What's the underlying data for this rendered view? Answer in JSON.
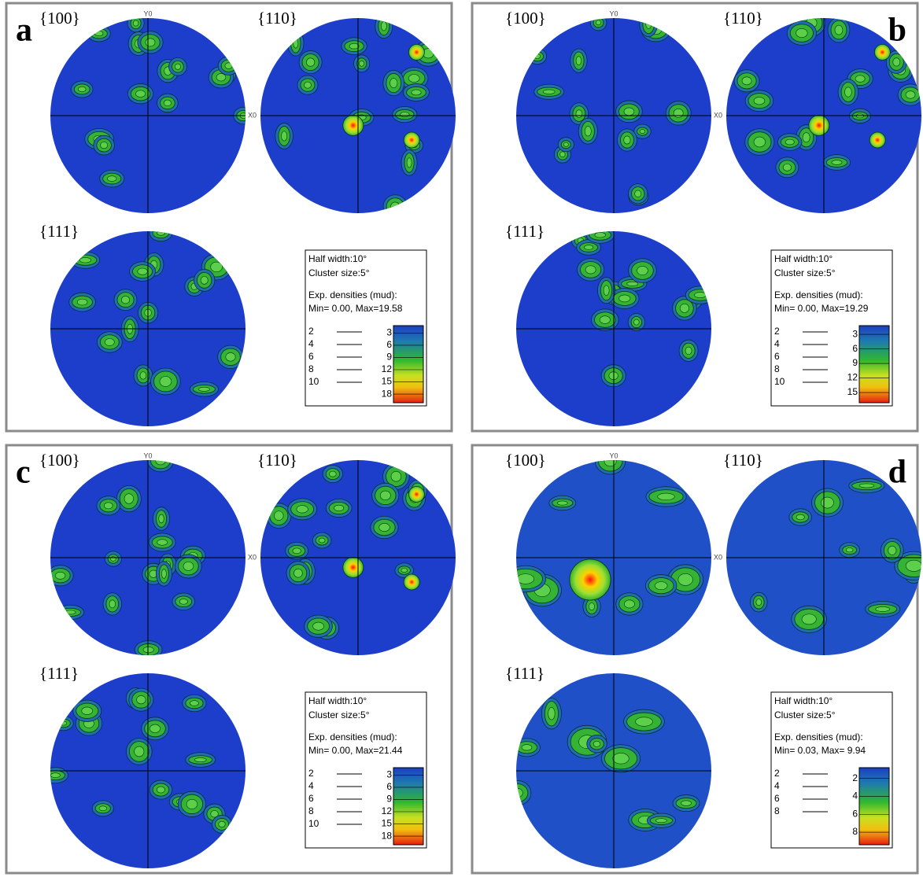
{
  "panels": [
    {
      "letter": "a",
      "pole_figures": [
        "{100}",
        "{110}",
        "{111}"
      ],
      "y_axis_label": "Y0",
      "x_axis_label": "X0",
      "legend": {
        "half_width": "Half width:10°",
        "cluster_size": "Cluster size:5°",
        "densities_title": "Exp. densities (mud):",
        "min_max": "Min= 0.00, Max=19.58",
        "contour_levels": [
          "2",
          "4",
          "6",
          "8",
          "10"
        ],
        "colorbar_ticks": [
          "3",
          "6",
          "9",
          "12",
          "15",
          "18"
        ]
      }
    },
    {
      "letter": "b",
      "pole_figures": [
        "{100}",
        "{110}",
        "{111}"
      ],
      "y_axis_label": "Y0",
      "x_axis_label": "X0",
      "legend": {
        "half_width": "Half width:10°",
        "cluster_size": "Cluster size:5°",
        "densities_title": "Exp. densities (mud):",
        "min_max": "Min= 0.00, Max=19.29",
        "contour_levels": [
          "2",
          "4",
          "6",
          "8",
          "10"
        ],
        "colorbar_ticks": [
          "3",
          "6",
          "9",
          "12",
          "15"
        ]
      }
    },
    {
      "letter": "c",
      "pole_figures": [
        "{100}",
        "{110}",
        "{111}"
      ],
      "y_axis_label": "Y0",
      "x_axis_label": "X0",
      "legend": {
        "half_width": "Half width:10°",
        "cluster_size": "Cluster size:5°",
        "densities_title": "Exp. densities (mud):",
        "min_max": "Min= 0.00, Max=21.44",
        "contour_levels": [
          "2",
          "4",
          "6",
          "8",
          "10"
        ],
        "colorbar_ticks": [
          "3",
          "6",
          "9",
          "12",
          "15",
          "18"
        ]
      }
    },
    {
      "letter": "d",
      "pole_figures": [
        "{100}",
        "{110}",
        "{111}"
      ],
      "y_axis_label": "Y0",
      "x_axis_label": "X0",
      "legend": {
        "half_width": "Half width:10°",
        "cluster_size": "Cluster size:5°",
        "densities_title": "Exp. densities (mud):",
        "min_max": "Min= 0.03, Max= 9.94",
        "contour_levels": [
          "2",
          "4",
          "6",
          "8"
        ],
        "colorbar_ticks": [
          "2",
          "4",
          "6",
          "8"
        ]
      }
    }
  ]
}
